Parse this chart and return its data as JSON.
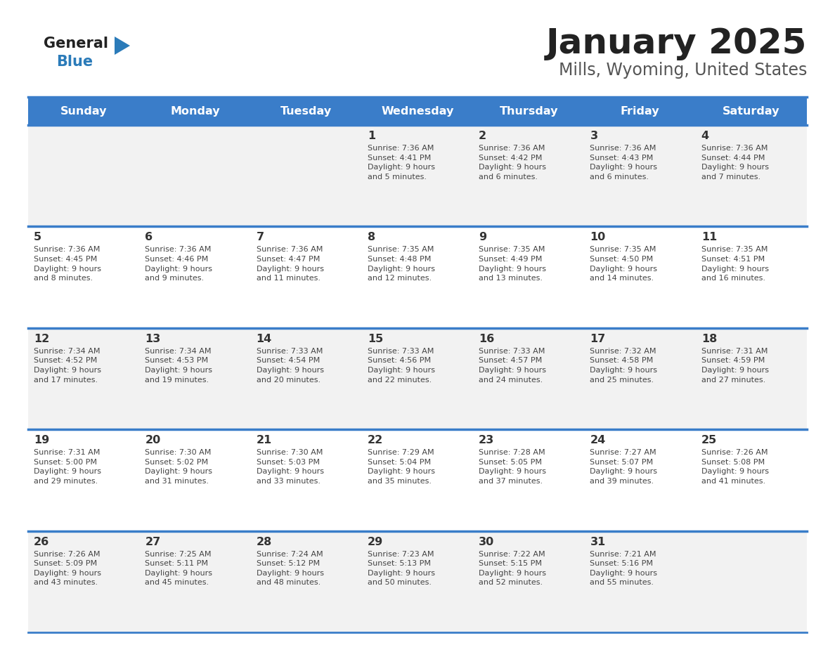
{
  "title": "January 2025",
  "subtitle": "Mills, Wyoming, United States",
  "days_of_week": [
    "Sunday",
    "Monday",
    "Tuesday",
    "Wednesday",
    "Thursday",
    "Friday",
    "Saturday"
  ],
  "header_bg": "#3A7DC9",
  "header_text": "#FFFFFF",
  "cell_bg_odd": "#F2F2F2",
  "cell_bg_even": "#FFFFFF",
  "border_color": "#3A7DC9",
  "day_num_color": "#333333",
  "cell_text_color": "#444444",
  "title_color": "#222222",
  "subtitle_color": "#555555",
  "logo_general_color": "#222222",
  "logo_blue_color": "#2B7BB9",
  "weeks": [
    [
      {
        "day": null,
        "info": null
      },
      {
        "day": null,
        "info": null
      },
      {
        "day": null,
        "info": null
      },
      {
        "day": 1,
        "info": "Sunrise: 7:36 AM\nSunset: 4:41 PM\nDaylight: 9 hours\nand 5 minutes."
      },
      {
        "day": 2,
        "info": "Sunrise: 7:36 AM\nSunset: 4:42 PM\nDaylight: 9 hours\nand 6 minutes."
      },
      {
        "day": 3,
        "info": "Sunrise: 7:36 AM\nSunset: 4:43 PM\nDaylight: 9 hours\nand 6 minutes."
      },
      {
        "day": 4,
        "info": "Sunrise: 7:36 AM\nSunset: 4:44 PM\nDaylight: 9 hours\nand 7 minutes."
      }
    ],
    [
      {
        "day": 5,
        "info": "Sunrise: 7:36 AM\nSunset: 4:45 PM\nDaylight: 9 hours\nand 8 minutes."
      },
      {
        "day": 6,
        "info": "Sunrise: 7:36 AM\nSunset: 4:46 PM\nDaylight: 9 hours\nand 9 minutes."
      },
      {
        "day": 7,
        "info": "Sunrise: 7:36 AM\nSunset: 4:47 PM\nDaylight: 9 hours\nand 11 minutes."
      },
      {
        "day": 8,
        "info": "Sunrise: 7:35 AM\nSunset: 4:48 PM\nDaylight: 9 hours\nand 12 minutes."
      },
      {
        "day": 9,
        "info": "Sunrise: 7:35 AM\nSunset: 4:49 PM\nDaylight: 9 hours\nand 13 minutes."
      },
      {
        "day": 10,
        "info": "Sunrise: 7:35 AM\nSunset: 4:50 PM\nDaylight: 9 hours\nand 14 minutes."
      },
      {
        "day": 11,
        "info": "Sunrise: 7:35 AM\nSunset: 4:51 PM\nDaylight: 9 hours\nand 16 minutes."
      }
    ],
    [
      {
        "day": 12,
        "info": "Sunrise: 7:34 AM\nSunset: 4:52 PM\nDaylight: 9 hours\nand 17 minutes."
      },
      {
        "day": 13,
        "info": "Sunrise: 7:34 AM\nSunset: 4:53 PM\nDaylight: 9 hours\nand 19 minutes."
      },
      {
        "day": 14,
        "info": "Sunrise: 7:33 AM\nSunset: 4:54 PM\nDaylight: 9 hours\nand 20 minutes."
      },
      {
        "day": 15,
        "info": "Sunrise: 7:33 AM\nSunset: 4:56 PM\nDaylight: 9 hours\nand 22 minutes."
      },
      {
        "day": 16,
        "info": "Sunrise: 7:33 AM\nSunset: 4:57 PM\nDaylight: 9 hours\nand 24 minutes."
      },
      {
        "day": 17,
        "info": "Sunrise: 7:32 AM\nSunset: 4:58 PM\nDaylight: 9 hours\nand 25 minutes."
      },
      {
        "day": 18,
        "info": "Sunrise: 7:31 AM\nSunset: 4:59 PM\nDaylight: 9 hours\nand 27 minutes."
      }
    ],
    [
      {
        "day": 19,
        "info": "Sunrise: 7:31 AM\nSunset: 5:00 PM\nDaylight: 9 hours\nand 29 minutes."
      },
      {
        "day": 20,
        "info": "Sunrise: 7:30 AM\nSunset: 5:02 PM\nDaylight: 9 hours\nand 31 minutes."
      },
      {
        "day": 21,
        "info": "Sunrise: 7:30 AM\nSunset: 5:03 PM\nDaylight: 9 hours\nand 33 minutes."
      },
      {
        "day": 22,
        "info": "Sunrise: 7:29 AM\nSunset: 5:04 PM\nDaylight: 9 hours\nand 35 minutes."
      },
      {
        "day": 23,
        "info": "Sunrise: 7:28 AM\nSunset: 5:05 PM\nDaylight: 9 hours\nand 37 minutes."
      },
      {
        "day": 24,
        "info": "Sunrise: 7:27 AM\nSunset: 5:07 PM\nDaylight: 9 hours\nand 39 minutes."
      },
      {
        "day": 25,
        "info": "Sunrise: 7:26 AM\nSunset: 5:08 PM\nDaylight: 9 hours\nand 41 minutes."
      }
    ],
    [
      {
        "day": 26,
        "info": "Sunrise: 7:26 AM\nSunset: 5:09 PM\nDaylight: 9 hours\nand 43 minutes."
      },
      {
        "day": 27,
        "info": "Sunrise: 7:25 AM\nSunset: 5:11 PM\nDaylight: 9 hours\nand 45 minutes."
      },
      {
        "day": 28,
        "info": "Sunrise: 7:24 AM\nSunset: 5:12 PM\nDaylight: 9 hours\nand 48 minutes."
      },
      {
        "day": 29,
        "info": "Sunrise: 7:23 AM\nSunset: 5:13 PM\nDaylight: 9 hours\nand 50 minutes."
      },
      {
        "day": 30,
        "info": "Sunrise: 7:22 AM\nSunset: 5:15 PM\nDaylight: 9 hours\nand 52 minutes."
      },
      {
        "day": 31,
        "info": "Sunrise: 7:21 AM\nSunset: 5:16 PM\nDaylight: 9 hours\nand 55 minutes."
      },
      {
        "day": null,
        "info": null
      }
    ]
  ]
}
